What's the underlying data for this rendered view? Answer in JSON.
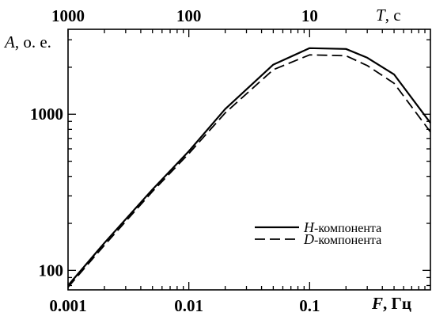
{
  "chart_data": {
    "type": "line",
    "x_scale": "log",
    "y_scale": "log",
    "xlim": [
      0.001,
      1
    ],
    "ylim": [
      75,
      3500
    ],
    "x_ticks": [
      {
        "value": 0.001,
        "label": "0.001"
      },
      {
        "value": 0.01,
        "label": "0.01"
      },
      {
        "value": 0.1,
        "label": "0.1"
      }
    ],
    "x_top_ticks": [
      {
        "value": 0.001,
        "label": "1000"
      },
      {
        "value": 0.01,
        "label": "100"
      },
      {
        "value": 0.1,
        "label": "10"
      }
    ],
    "y_ticks": [
      {
        "value": 100,
        "label": "100"
      },
      {
        "value": 1000,
        "label": "1000"
      }
    ],
    "xlabel_italic": "F",
    "xlabel_rest": ", Гц",
    "x2label_italic": "T",
    "x2label_rest": ", с",
    "ylabel_italic": "A",
    "ylabel_rest": ", о. е.",
    "series": [
      {
        "name_italic": "H",
        "name_rest": "-компонента",
        "style": "solid",
        "color": "#000000",
        "x": [
          0.001,
          0.002,
          0.005,
          0.01,
          0.02,
          0.05,
          0.1,
          0.2,
          0.3,
          0.5,
          1.0
        ],
        "y": [
          80,
          150,
          330,
          580,
          1080,
          2080,
          2650,
          2620,
          2300,
          1800,
          880
        ]
      },
      {
        "name_italic": "D",
        "name_rest": "-компонента",
        "style": "dashed",
        "color": "#000000",
        "x": [
          0.001,
          0.002,
          0.005,
          0.01,
          0.02,
          0.05,
          0.1,
          0.2,
          0.3,
          0.5,
          1.0
        ],
        "y": [
          78,
          145,
          320,
          560,
          1020,
          1930,
          2400,
          2370,
          2050,
          1580,
          770
        ]
      }
    ],
    "legend_position": "bottom-right",
    "grid": false
  }
}
